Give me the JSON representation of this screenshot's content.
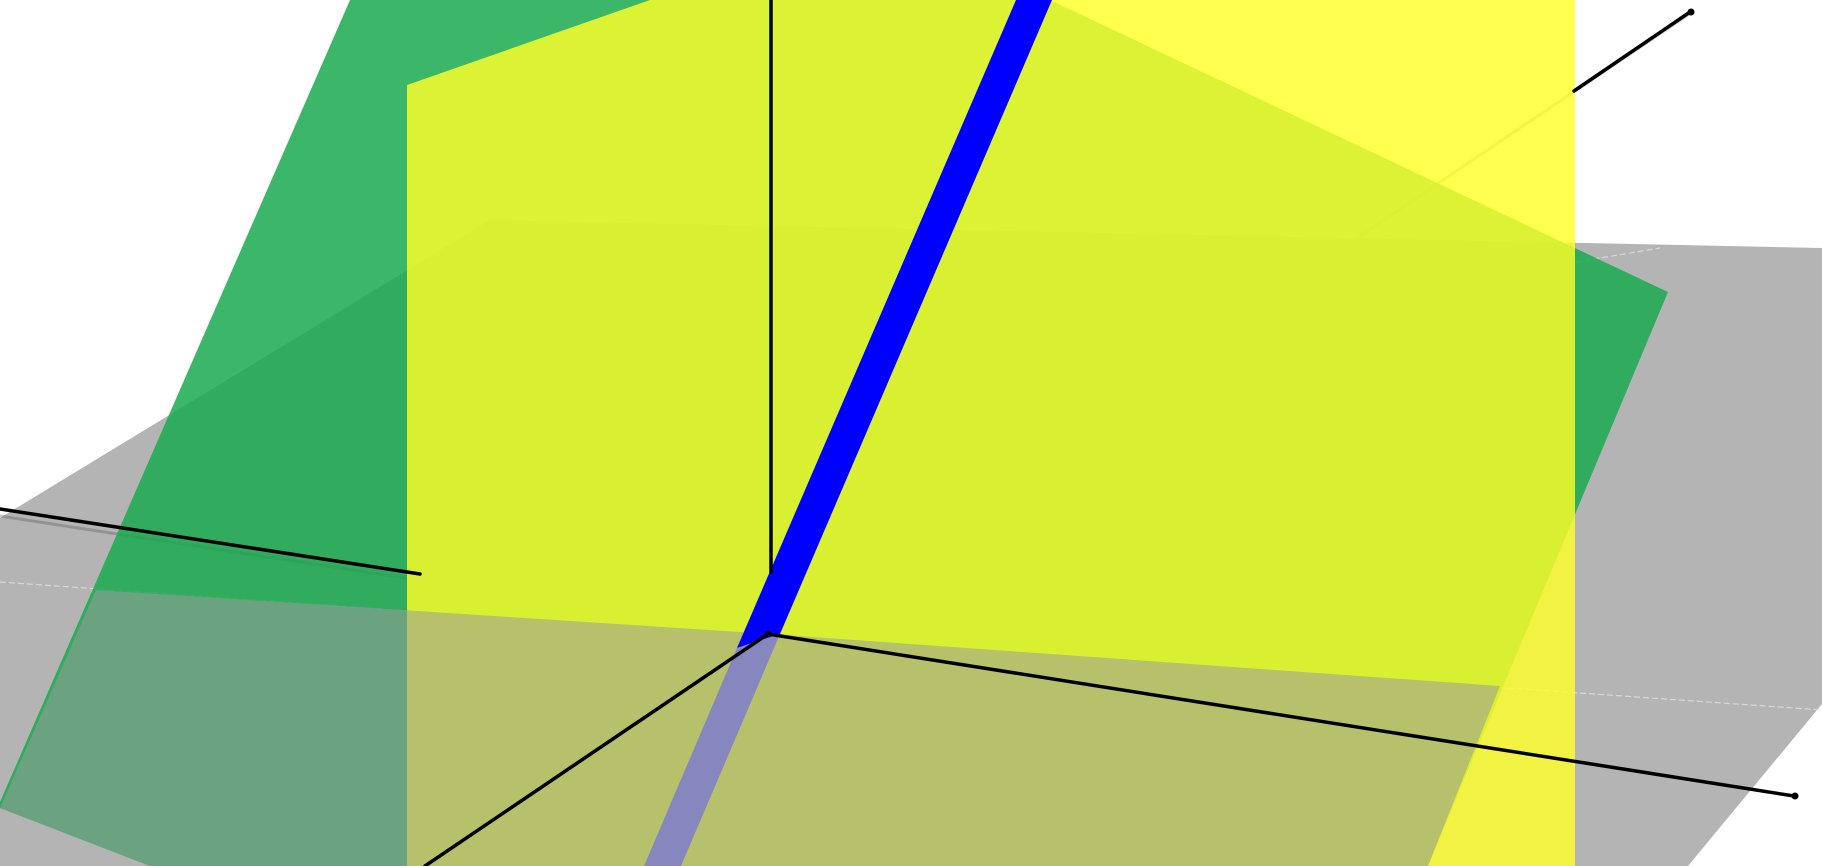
{
  "scene": {
    "colors": {
      "background": "#ffffff",
      "ground_plane": "#b4b4b4",
      "green_plane": "#1aaa50",
      "yellow_plane": "#ffff28",
      "intersection_line": "#0000ff",
      "axis": "#000000"
    },
    "opacity": {
      "ground_plane": 1.0,
      "green_plane": 0.85,
      "yellow_plane": 0.82,
      "intersection_line": 1.0
    }
  }
}
